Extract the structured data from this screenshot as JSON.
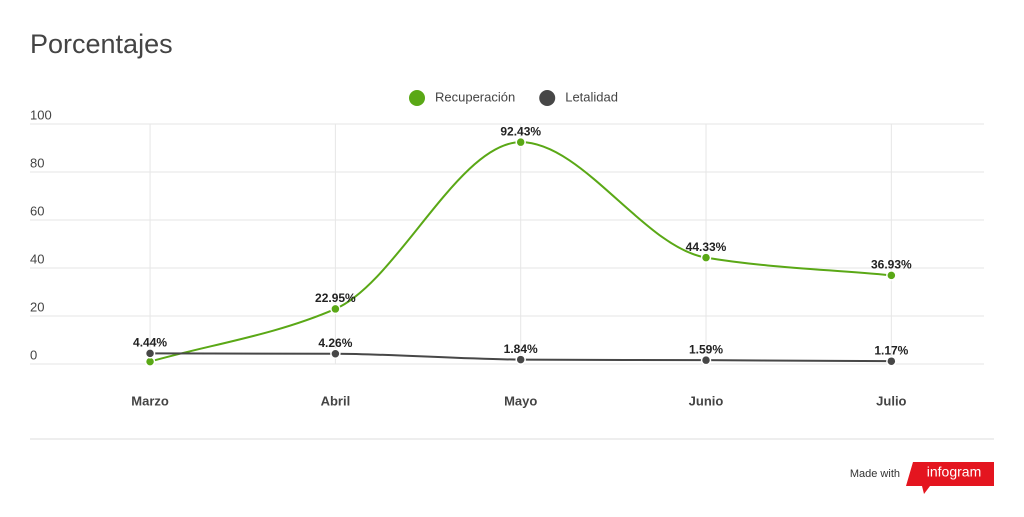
{
  "chart_data": {
    "type": "line",
    "title": "Porcentajes",
    "categories": [
      "Marzo",
      "Abril",
      "Mayo",
      "Junio",
      "Julio"
    ],
    "series": [
      {
        "name": "Recuperación",
        "color": "#5aa816",
        "values": [
          1,
          22.95,
          92.43,
          44.33,
          36.93
        ],
        "value_labels": [
          null,
          "22.95%",
          "92.43%",
          "44.33%",
          "36.93%"
        ]
      },
      {
        "name": "Letalidad",
        "color": "#474747",
        "values": [
          4.44,
          4.26,
          1.84,
          1.59,
          1.17
        ],
        "value_labels": [
          "4.44%",
          "4.26%",
          "1.84%",
          "1.59%",
          "1.17%"
        ]
      }
    ],
    "ylim": [
      0,
      100
    ],
    "yticks": [
      0,
      20,
      40,
      60,
      80,
      100
    ],
    "grid": true,
    "legend": "top",
    "footer": {
      "made_with": "Made with",
      "brand": "infogram"
    }
  }
}
